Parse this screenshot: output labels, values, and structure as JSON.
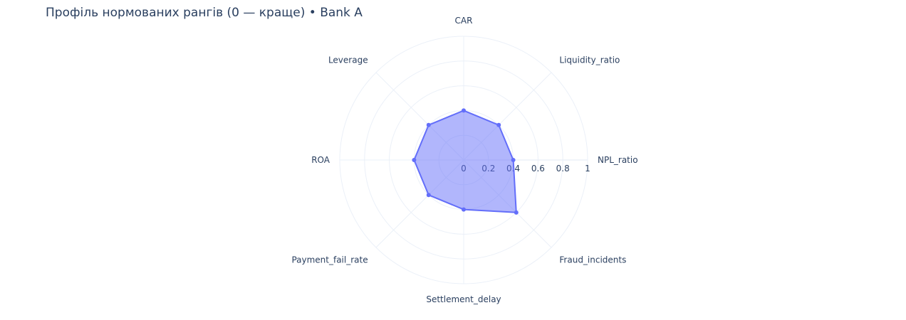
{
  "chart_data": {
    "type": "radar",
    "title": "Профіль нормованих рангів (0 — краще) • Bank A",
    "theta": [
      "CAR",
      "Liquidity_ratio",
      "NPL_ratio",
      "Fraud_incidents",
      "Settlement_delay",
      "Payment_fail_rate",
      "ROA",
      "Leverage"
    ],
    "r": [
      0.4,
      0.4,
      0.4,
      0.6,
      0.4,
      0.4,
      0.4,
      0.4
    ],
    "radial_range": [
      0,
      1
    ],
    "radial_ticks": [
      "0",
      "0.2",
      "0.4",
      "0.6",
      "0.8",
      "1"
    ],
    "grid": true,
    "series_color": "#636efa",
    "fill_color": "rgba(99,110,250,0.5)"
  }
}
